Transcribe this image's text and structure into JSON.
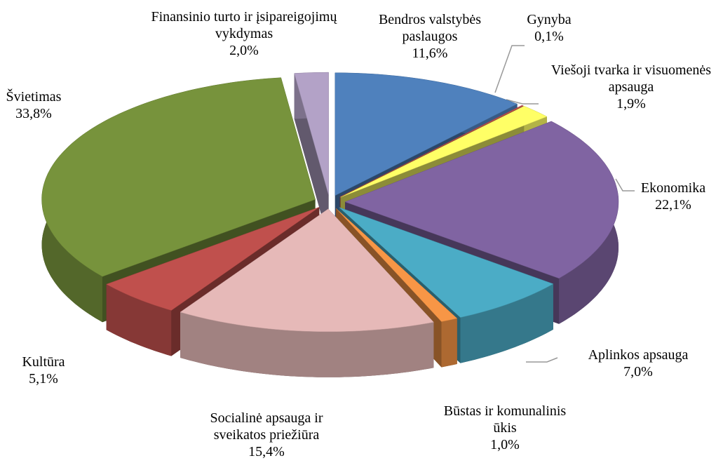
{
  "chart_data": {
    "type": "pie",
    "categories": [
      "Bendros valstybės paslaugos",
      "Gynyba",
      "Viešoji tvarka ir visuomenės apsauga",
      "Ekonomika",
      "Aplinkos apsauga",
      "Būstas ir komunalinis ūkis",
      "Socialinė apsauga ir sveikatos priežiūra",
      "Kultūra",
      "Švietimas",
      "Finansinio turto ir įsipareigojimų vykdymas"
    ],
    "values": [
      11.6,
      0.1,
      1.9,
      22.1,
      7.0,
      1.0,
      15.4,
      5.1,
      33.8,
      2.0
    ],
    "value_labels": [
      "11,6%",
      "0,1%",
      "1,9%",
      "22,1%",
      "7,0%",
      "1,0%",
      "15,4%",
      "5,1%",
      "33,8%",
      "2,0%"
    ],
    "colors": [
      "#4f81bd",
      "#c0504d",
      "#ffff66",
      "#8064a2",
      "#4bacc6",
      "#f79646",
      "#e6b9b8",
      "#c0504d",
      "#77933c",
      "#b3a2c7"
    ]
  }
}
